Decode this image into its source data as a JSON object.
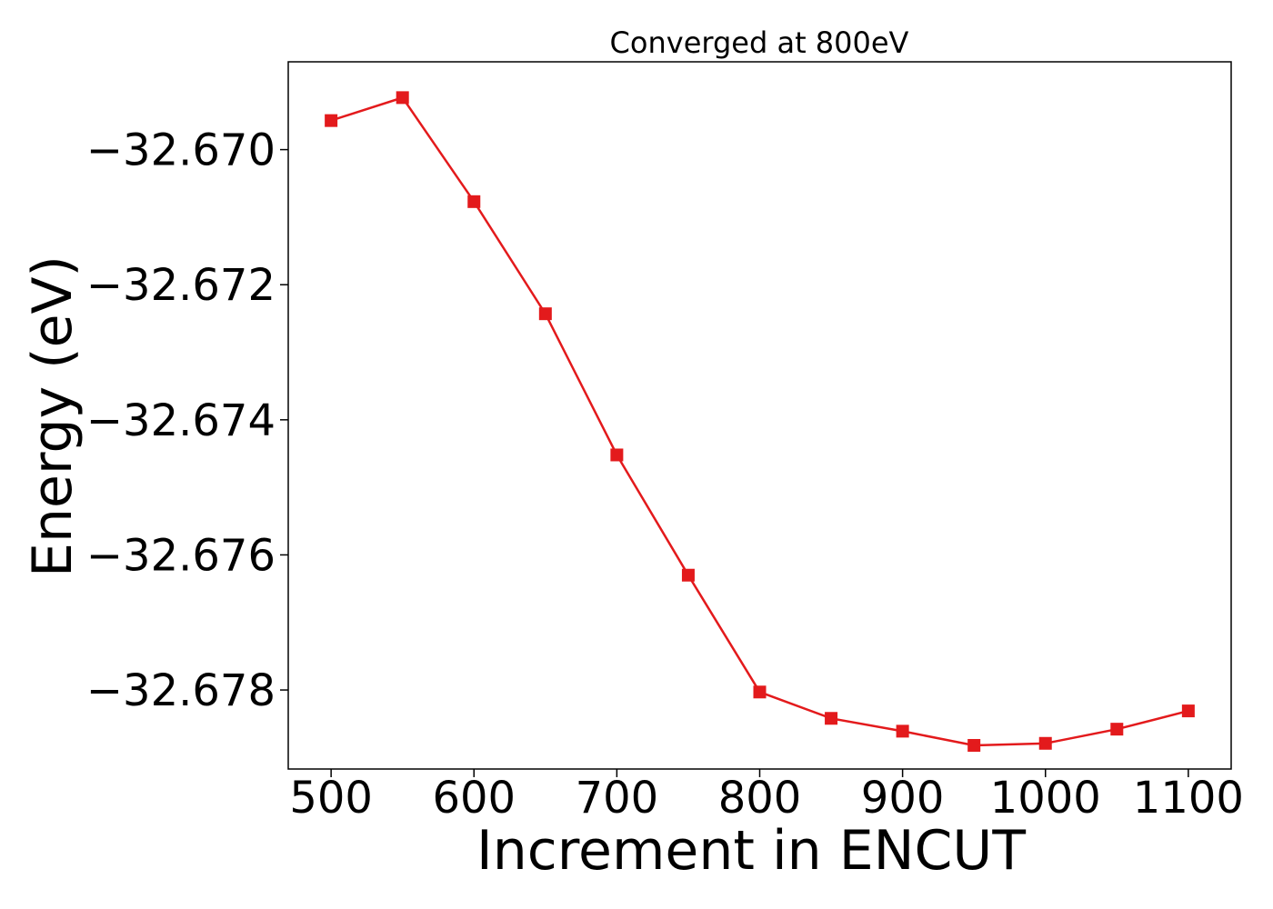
{
  "chart_data": {
    "type": "line",
    "title": "Converged at 800eV",
    "xlabel": "Increment in ENCUT",
    "ylabel": "Energy (eV)",
    "x": [
      500,
      550,
      600,
      650,
      700,
      750,
      800,
      850,
      900,
      950,
      1000,
      1050,
      1100
    ],
    "series": [
      {
        "values": [
          -32.66957,
          -32.66923,
          -32.67077,
          -32.67243,
          -32.67452,
          -32.6763,
          -32.67803,
          -32.67842,
          -32.67861,
          -32.67882,
          -32.67879,
          -32.67858,
          -32.67831
        ],
        "color": "#e31a1c",
        "marker": "square"
      }
    ],
    "xticks": [
      500,
      600,
      700,
      800,
      900,
      1000,
      1100
    ],
    "xtick_labels": [
      "500",
      "600",
      "700",
      "800",
      "900",
      "1000",
      "1100"
    ],
    "yticks": [
      -32.67,
      -32.672,
      -32.674,
      -32.676,
      -32.678
    ],
    "ytick_labels": [
      "−32.670",
      "−32.672",
      "−32.674",
      "−32.676",
      "−32.678"
    ],
    "xlim": [
      470,
      1130
    ],
    "ylim": [
      -32.67917,
      -32.6687
    ],
    "grid": false,
    "legend": "none"
  }
}
